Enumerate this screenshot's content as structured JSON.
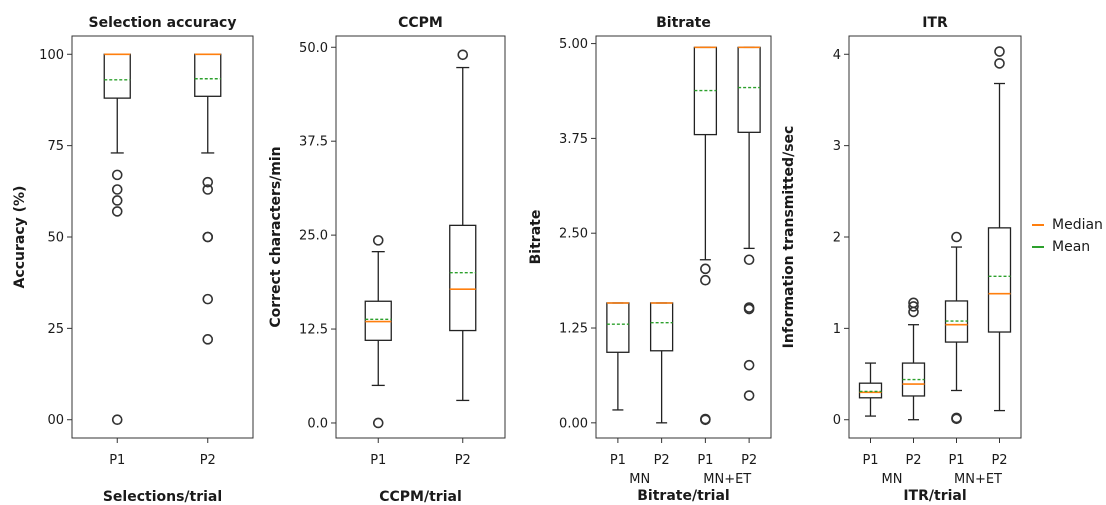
{
  "chart_data": [
    {
      "type": "box",
      "title": "Selection accuracy",
      "ylabel": "Accuracy (%)",
      "xlabel": "Selections/trial",
      "ylim": [
        -5,
        105
      ],
      "yticks": [
        0,
        25,
        50,
        75,
        100
      ],
      "ytick_labels": [
        "00",
        "25",
        "50",
        "75",
        "100"
      ],
      "categories": [
        "P1",
        "P2"
      ],
      "group_labels": [],
      "boxes": [
        {
          "q1": 88,
          "median": 100,
          "q3": 100,
          "whisker_low": 73,
          "whisker_high": 100,
          "mean": 93,
          "outliers": [
            67,
            63,
            60,
            57,
            0
          ]
        },
        {
          "q1": 88.5,
          "median": 100,
          "q3": 100,
          "whisker_low": 73,
          "whisker_high": 100,
          "mean": 93.3,
          "outliers": [
            65,
            63,
            50,
            50,
            33,
            22
          ]
        }
      ]
    },
    {
      "type": "box",
      "title": "CCPM",
      "ylabel": "Correct characters/min",
      "xlabel": "CCPM/trial",
      "ylim": [
        -2,
        51.5
      ],
      "yticks": [
        0,
        12.5,
        25,
        37.5,
        50
      ],
      "ytick_labels": [
        "0.0",
        "12.5",
        "25.0",
        "37.5",
        "50.0"
      ],
      "categories": [
        "P1",
        "P2"
      ],
      "group_labels": [],
      "boxes": [
        {
          "q1": 11,
          "median": 13.5,
          "q3": 16.2,
          "whisker_low": 5,
          "whisker_high": 22.8,
          "mean": 13.8,
          "outliers": [
            24.3,
            0
          ]
        },
        {
          "q1": 12.3,
          "median": 17.8,
          "q3": 26.3,
          "whisker_low": 3,
          "whisker_high": 47.3,
          "mean": 20,
          "outliers": [
            49
          ]
        }
      ]
    },
    {
      "type": "box",
      "title": "Bitrate",
      "ylabel": "Bitrate",
      "xlabel": "Bitrate/trial",
      "ylim": [
        -0.2,
        5.1
      ],
      "yticks": [
        0,
        1.25,
        2.5,
        3.75,
        5
      ],
      "ytick_labels": [
        "0.00",
        "1.25",
        "2.50",
        "3.75",
        "5.00"
      ],
      "categories": [
        "P1",
        "P2",
        "P1",
        "P2"
      ],
      "group_labels": [
        "MN",
        "MN+ET"
      ],
      "boxes": [
        {
          "q1": 0.93,
          "median": 1.58,
          "q3": 1.58,
          "whisker_low": 0.17,
          "whisker_high": 1.58,
          "mean": 1.3,
          "outliers": []
        },
        {
          "q1": 0.95,
          "median": 1.58,
          "q3": 1.58,
          "whisker_low": 0.0,
          "whisker_high": 1.58,
          "mean": 1.32,
          "outliers": []
        },
        {
          "q1": 3.8,
          "median": 4.95,
          "q3": 4.95,
          "whisker_low": 2.15,
          "whisker_high": 4.95,
          "mean": 4.38,
          "outliers": [
            2.03,
            1.88,
            0.05,
            0.04
          ]
        },
        {
          "q1": 3.83,
          "median": 4.95,
          "q3": 4.95,
          "whisker_low": 2.3,
          "whisker_high": 4.95,
          "mean": 4.42,
          "outliers": [
            2.15,
            1.52,
            1.5,
            0.76,
            0.36
          ]
        }
      ]
    },
    {
      "type": "box",
      "title": "ITR",
      "ylabel": "Information transmitted/sec",
      "xlabel": "ITR/trial",
      "ylim": [
        -0.2,
        4.2
      ],
      "yticks": [
        0,
        1,
        2,
        3,
        4
      ],
      "ytick_labels": [
        "0",
        "1",
        "2",
        "3",
        "4"
      ],
      "categories": [
        "P1",
        "P2",
        "P1",
        "P2"
      ],
      "group_labels": [
        "MN",
        "MN+ET"
      ],
      "boxes": [
        {
          "q1": 0.24,
          "median": 0.3,
          "q3": 0.4,
          "whisker_low": 0.04,
          "whisker_high": 0.62,
          "mean": 0.31,
          "outliers": []
        },
        {
          "q1": 0.26,
          "median": 0.39,
          "q3": 0.62,
          "whisker_low": 0.0,
          "whisker_high": 1.04,
          "mean": 0.44,
          "outliers": [
            1.28,
            1.24,
            1.18
          ]
        },
        {
          "q1": 0.85,
          "median": 1.04,
          "q3": 1.3,
          "whisker_low": 0.32,
          "whisker_high": 1.89,
          "mean": 1.08,
          "outliers": [
            2.0,
            0.02,
            0.01
          ]
        },
        {
          "q1": 0.96,
          "median": 1.38,
          "q3": 2.1,
          "whisker_low": 0.1,
          "whisker_high": 3.68,
          "mean": 1.57,
          "outliers": [
            4.03,
            3.9
          ]
        }
      ]
    }
  ],
  "legend": {
    "position": "right",
    "entries": [
      {
        "label": "Median",
        "color": "#ff7f0e",
        "style": "solid"
      },
      {
        "label": "Mean",
        "color": "#2ca02c",
        "style": "dashed"
      }
    ]
  }
}
